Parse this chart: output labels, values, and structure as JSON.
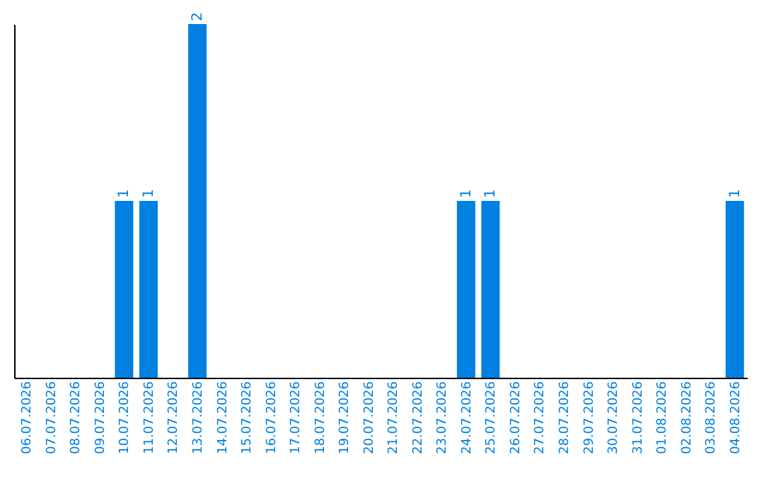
{
  "chart_data": {
    "type": "bar",
    "categories": [
      "06.07.2026",
      "07.07.2026",
      "08.07.2026",
      "09.07.2026",
      "10.07.2026",
      "11.07.2026",
      "12.07.2026",
      "13.07.2026",
      "14.07.2026",
      "15.07.2026",
      "16.07.2026",
      "17.07.2026",
      "18.07.2026",
      "19.07.2026",
      "20.07.2026",
      "21.07.2026",
      "22.07.2026",
      "23.07.2026",
      "24.07.2026",
      "25.07.2026",
      "26.07.2026",
      "27.07.2026",
      "28.07.2026",
      "29.07.2026",
      "30.07.2026",
      "31.07.2026",
      "01.08.2026",
      "02.08.2026",
      "03.08.2026",
      "04.08.2026"
    ],
    "values": [
      0,
      0,
      0,
      0,
      1,
      1,
      0,
      2,
      0,
      0,
      0,
      0,
      0,
      0,
      0,
      0,
      0,
      0,
      1,
      1,
      0,
      0,
      0,
      0,
      0,
      0,
      0,
      0,
      0,
      1
    ],
    "value_labels": [
      null,
      null,
      null,
      null,
      "1",
      "1",
      null,
      "2",
      null,
      null,
      null,
      null,
      null,
      null,
      null,
      null,
      null,
      null,
      "1",
      "1",
      null,
      null,
      null,
      null,
      null,
      null,
      null,
      null,
      null,
      "1"
    ],
    "color": "#0080e0",
    "tick_labels": "x",
    "grid": false
  }
}
